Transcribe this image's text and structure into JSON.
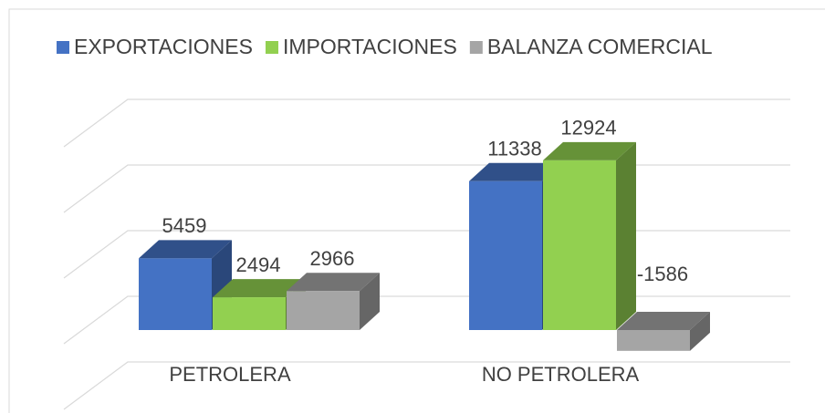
{
  "chart_data": {
    "type": "bar3d",
    "categories": [
      "PETROLERA",
      "NO PETROLERA"
    ],
    "series": [
      {
        "name": "EXPORTACIONES",
        "color": "#4472c4",
        "values": [
          5459,
          11338
        ]
      },
      {
        "name": "IMPORTACIONES",
        "color": "#92d050",
        "values": [
          2494,
          12924
        ]
      },
      {
        "name": "BALANZA COMERCIAL",
        "color": "#a5a5a5",
        "values": [
          2966,
          -1586
        ]
      }
    ],
    "ylim": [
      -5000,
      15000
    ],
    "yticks": [
      -5000,
      0,
      5000,
      10000,
      15000
    ],
    "grid": true,
    "legend": "top"
  }
}
